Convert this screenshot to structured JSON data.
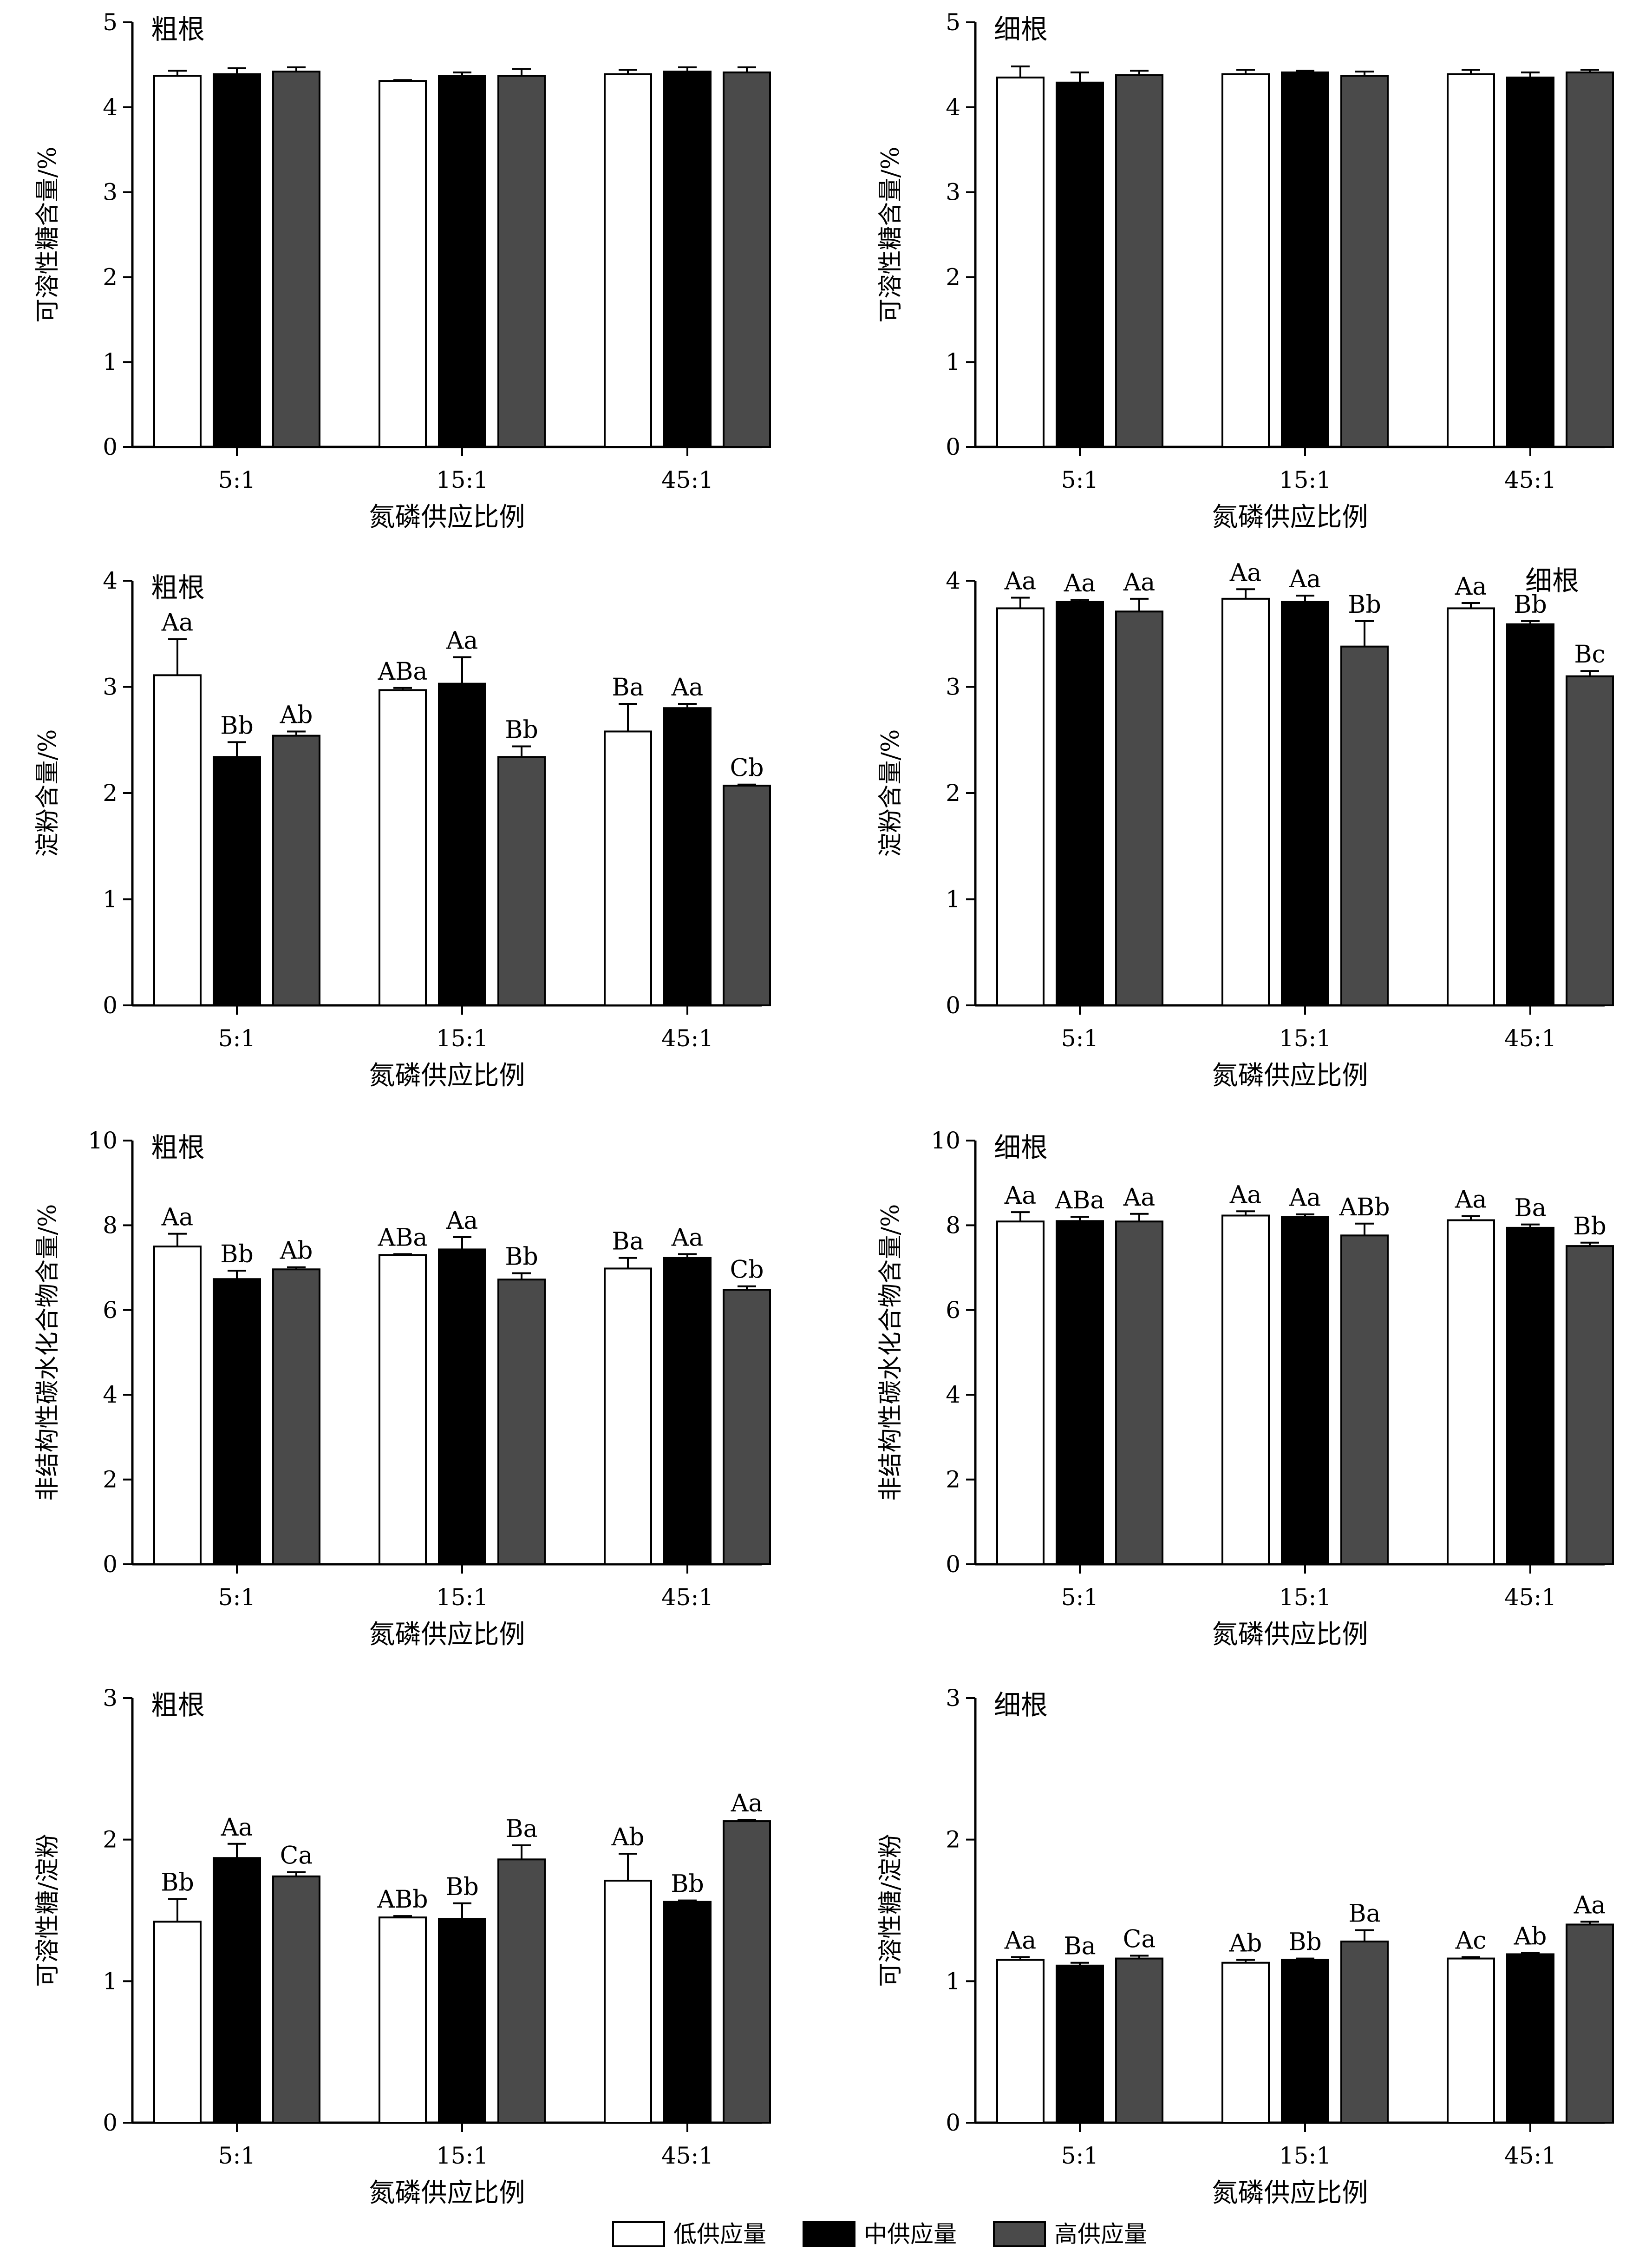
{
  "colors": {
    "low": "#ffffff",
    "mid": "#000000",
    "high": "#4a4a4a",
    "axis": "#000000"
  },
  "legend": [
    "低供应量",
    "中供应量",
    "高供应量"
  ],
  "chart_data": [
    {
      "type": "bar",
      "title": "粗根",
      "ylabel": "可溶性糖含量/%",
      "xlabel": "氮磷供应比例",
      "categories": [
        "5:1",
        "15:1",
        "45:1"
      ],
      "ylim": [
        0,
        5
      ],
      "yticks": [
        0,
        1,
        2,
        3,
        4,
        5
      ],
      "series": [
        {
          "name": "低供应量",
          "values": [
            4.37,
            4.31,
            4.39
          ],
          "errors": [
            0.06,
            0.01,
            0.05
          ],
          "labels": [
            "",
            "",
            ""
          ]
        },
        {
          "name": "中供应量",
          "values": [
            4.39,
            4.37,
            4.42
          ],
          "errors": [
            0.07,
            0.04,
            0.05
          ],
          "labels": [
            "",
            "",
            ""
          ]
        },
        {
          "name": "高供应量",
          "values": [
            4.42,
            4.37,
            4.41
          ],
          "errors": [
            0.05,
            0.08,
            0.06
          ],
          "labels": [
            "",
            "",
            ""
          ]
        }
      ]
    },
    {
      "type": "bar",
      "title": "细根",
      "ylabel": "可溶性糖含量/%",
      "xlabel": "氮磷供应比例",
      "categories": [
        "5:1",
        "15:1",
        "45:1"
      ],
      "ylim": [
        0,
        5
      ],
      "yticks": [
        0,
        1,
        2,
        3,
        4,
        5
      ],
      "series": [
        {
          "name": "低供应量",
          "values": [
            4.35,
            4.39,
            4.39
          ],
          "errors": [
            0.13,
            0.05,
            0.05
          ],
          "labels": [
            "",
            "",
            ""
          ]
        },
        {
          "name": "中供应量",
          "values": [
            4.29,
            4.41,
            4.35
          ],
          "errors": [
            0.12,
            0.02,
            0.06
          ],
          "labels": [
            "",
            "",
            ""
          ]
        },
        {
          "name": "高供应量",
          "values": [
            4.38,
            4.37,
            4.41
          ],
          "errors": [
            0.05,
            0.05,
            0.03
          ],
          "labels": [
            "",
            "",
            ""
          ]
        }
      ]
    },
    {
      "type": "bar",
      "title": "粗根",
      "ylabel": "淀粉含量/%",
      "xlabel": "氮磷供应比例",
      "categories": [
        "5:1",
        "15:1",
        "45:1"
      ],
      "ylim": [
        0,
        4
      ],
      "yticks": [
        0,
        1,
        2,
        3,
        4
      ],
      "series": [
        {
          "name": "低供应量",
          "values": [
            3.11,
            2.97,
            2.58
          ],
          "errors": [
            0.34,
            0.02,
            0.26
          ],
          "labels": [
            "Aa",
            "ABa",
            "Ba"
          ]
        },
        {
          "name": "中供应量",
          "values": [
            2.34,
            3.03,
            2.8
          ],
          "errors": [
            0.14,
            0.25,
            0.04
          ],
          "labels": [
            "Bb",
            "Aa",
            "Aa"
          ]
        },
        {
          "name": "高供应量",
          "values": [
            2.54,
            2.34,
            2.07
          ],
          "errors": [
            0.04,
            0.1,
            0.01
          ],
          "labels": [
            "Ab",
            "Bb",
            "Cb"
          ]
        }
      ]
    },
    {
      "type": "bar",
      "title": "细根",
      "ylabel": "淀粉含量/%",
      "xlabel": "氮磷供应比例",
      "categories": [
        "5:1",
        "15:1",
        "45:1"
      ],
      "ylim": [
        0,
        4
      ],
      "yticks": [
        0,
        1,
        2,
        3,
        4
      ],
      "series": [
        {
          "name": "低供应量",
          "values": [
            3.74,
            3.83,
            3.74
          ],
          "errors": [
            0.1,
            0.09,
            0.05
          ],
          "labels": [
            "Aa",
            "Aa",
            "Aa"
          ]
        },
        {
          "name": "中供应量",
          "values": [
            3.8,
            3.8,
            3.59
          ],
          "errors": [
            0.02,
            0.06,
            0.03
          ],
          "labels": [
            "Aa",
            "Aa",
            "Bb"
          ]
        },
        {
          "name": "高供应量",
          "values": [
            3.71,
            3.38,
            3.1
          ],
          "errors": [
            0.12,
            0.24,
            0.05
          ],
          "labels": [
            "Aa",
            "Bb",
            "Bc"
          ]
        }
      ]
    },
    {
      "type": "bar",
      "title": "粗根",
      "ylabel": "非结构性碳水化合物含量/%",
      "xlabel": "氮磷供应比例",
      "categories": [
        "5:1",
        "15:1",
        "45:1"
      ],
      "ylim": [
        0,
        10
      ],
      "yticks": [
        0,
        2,
        4,
        6,
        8,
        10
      ],
      "series": [
        {
          "name": "低供应量",
          "values": [
            7.5,
            7.3,
            6.98
          ],
          "errors": [
            0.3,
            0.02,
            0.25
          ],
          "labels": [
            "Aa",
            "ABa",
            "Ba"
          ]
        },
        {
          "name": "中供应量",
          "values": [
            6.73,
            7.43,
            7.23
          ],
          "errors": [
            0.2,
            0.29,
            0.09
          ],
          "labels": [
            "Bb",
            "Aa",
            "Aa"
          ]
        },
        {
          "name": "高供应量",
          "values": [
            6.96,
            6.72,
            6.48
          ],
          "errors": [
            0.05,
            0.15,
            0.08
          ],
          "labels": [
            "Ab",
            "Bb",
            "Cb"
          ]
        }
      ]
    },
    {
      "type": "bar",
      "title": "细根",
      "ylabel": "非结构性碳水化合物含量/%",
      "xlabel": "氮磷供应比例",
      "categories": [
        "5:1",
        "15:1",
        "45:1"
      ],
      "ylim": [
        0,
        10
      ],
      "yticks": [
        0,
        2,
        4,
        6,
        8,
        10
      ],
      "series": [
        {
          "name": "低供应量",
          "values": [
            8.09,
            8.23,
            8.12
          ],
          "errors": [
            0.22,
            0.1,
            0.1
          ],
          "labels": [
            "Aa",
            "Aa",
            "Aa"
          ]
        },
        {
          "name": "中供应量",
          "values": [
            8.1,
            8.2,
            7.94
          ],
          "errors": [
            0.1,
            0.06,
            0.08
          ],
          "labels": [
            "ABa",
            "Aa",
            "Ba"
          ]
        },
        {
          "name": "高供应量",
          "values": [
            8.09,
            7.76,
            7.51
          ],
          "errors": [
            0.18,
            0.28,
            0.08
          ],
          "labels": [
            "Aa",
            "ABb",
            "Bb"
          ]
        }
      ]
    },
    {
      "type": "bar",
      "title": "粗根",
      "ylabel": "可溶性糖/淀粉",
      "xlabel": "氮磷供应比例",
      "categories": [
        "5:1",
        "15:1",
        "45:1"
      ],
      "ylim": [
        0,
        3
      ],
      "yticks": [
        0,
        1,
        2,
        3
      ],
      "series": [
        {
          "name": "低供应量",
          "values": [
            1.42,
            1.45,
            1.71
          ],
          "errors": [
            0.16,
            0.01,
            0.19
          ],
          "labels": [
            "Bb",
            "ABb",
            "Ab"
          ]
        },
        {
          "name": "中供应量",
          "values": [
            1.87,
            1.44,
            1.56
          ],
          "errors": [
            0.1,
            0.11,
            0.01
          ],
          "labels": [
            "Aa",
            "Bb",
            "Bb"
          ]
        },
        {
          "name": "高供应量",
          "values": [
            1.74,
            1.86,
            2.13
          ],
          "errors": [
            0.03,
            0.1,
            0.01
          ],
          "labels": [
            "Ca",
            "Ba",
            "Aa"
          ]
        }
      ]
    },
    {
      "type": "bar",
      "title": "细根",
      "ylabel": "可溶性糖/淀粉",
      "xlabel": "氮磷供应比例",
      "categories": [
        "5:1",
        "15:1",
        "45:1"
      ],
      "ylim": [
        0,
        3
      ],
      "yticks": [
        0,
        1,
        2,
        3
      ],
      "series": [
        {
          "name": "低供应量",
          "values": [
            1.15,
            1.13,
            1.16
          ],
          "errors": [
            0.02,
            0.02,
            0.01
          ],
          "labels": [
            "Aa",
            "Ab",
            "Ac"
          ]
        },
        {
          "name": "中供应量",
          "values": [
            1.11,
            1.15,
            1.19
          ],
          "errors": [
            0.02,
            0.01,
            0.01
          ],
          "labels": [
            "Ba",
            "Bb",
            "Ab"
          ]
        },
        {
          "name": "高供应量",
          "values": [
            1.16,
            1.28,
            1.4
          ],
          "errors": [
            0.02,
            0.08,
            0.02
          ],
          "labels": [
            "Ca",
            "Ba",
            "Aa"
          ]
        }
      ]
    }
  ]
}
